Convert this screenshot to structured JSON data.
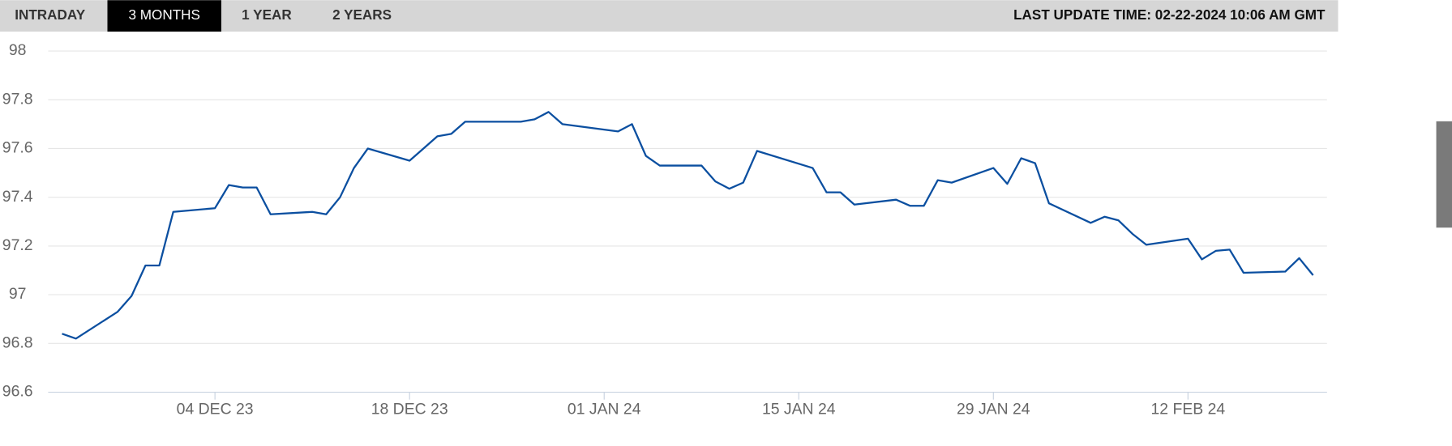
{
  "ui": {
    "tabs": [
      "INTRADAY",
      "3 MONTHS",
      "1 YEAR",
      "2 YEARS"
    ],
    "active_tab": 1,
    "last_update": "LAST UPDATE TIME: 02-22-2024 10:06 AM GMT"
  },
  "chart_data": {
    "type": "line",
    "color": "#0b4fa0",
    "grid": true,
    "x": [
      "2023-11-23",
      "2023-11-24",
      "2023-11-27",
      "2023-11-28",
      "2023-11-29",
      "2023-11-30",
      "2023-12-01",
      "2023-12-04",
      "2023-12-05",
      "2023-12-06",
      "2023-12-07",
      "2023-12-08",
      "2023-12-11",
      "2023-12-12",
      "2023-12-13",
      "2023-12-14",
      "2023-12-15",
      "2023-12-18",
      "2023-12-19",
      "2023-12-20",
      "2023-12-21",
      "2023-12-22",
      "2023-12-26",
      "2023-12-27",
      "2023-12-28",
      "2023-12-29",
      "2024-01-02",
      "2024-01-03",
      "2024-01-04",
      "2024-01-05",
      "2024-01-08",
      "2024-01-09",
      "2024-01-10",
      "2024-01-11",
      "2024-01-12",
      "2024-01-16",
      "2024-01-17",
      "2024-01-18",
      "2024-01-19",
      "2024-01-22",
      "2024-01-23",
      "2024-01-24",
      "2024-01-25",
      "2024-01-26",
      "2024-01-29",
      "2024-01-30",
      "2024-01-31",
      "2024-02-01",
      "2024-02-02",
      "2024-02-05",
      "2024-02-06",
      "2024-02-07",
      "2024-02-08",
      "2024-02-09",
      "2024-02-12",
      "2024-02-13",
      "2024-02-14",
      "2024-02-15",
      "2024-02-16",
      "2024-02-19",
      "2024-02-20",
      "2024-02-21"
    ],
    "values": [
      96.84,
      96.82,
      96.93,
      96.995,
      97.12,
      97.12,
      97.34,
      97.355,
      97.45,
      97.44,
      97.44,
      97.33,
      97.34,
      97.33,
      97.4,
      97.52,
      97.6,
      97.55,
      97.6,
      97.65,
      97.66,
      97.71,
      97.71,
      97.72,
      97.75,
      97.7,
      97.67,
      97.7,
      97.57,
      97.53,
      97.53,
      97.465,
      97.435,
      97.46,
      97.59,
      97.52,
      97.42,
      97.42,
      97.37,
      97.39,
      97.365,
      97.365,
      97.47,
      97.46,
      97.52,
      97.455,
      97.56,
      97.54,
      97.375,
      97.295,
      97.32,
      97.305,
      97.25,
      97.205,
      97.23,
      97.145,
      97.18,
      97.185,
      97.09,
      97.095,
      97.15,
      97.08
    ],
    "xlim": [
      "2023-11-22",
      "2024-02-22"
    ],
    "xticks": [
      {
        "value": "2023-12-04",
        "label": "04 DEC 23"
      },
      {
        "value": "2023-12-18",
        "label": "18 DEC 23"
      },
      {
        "value": "2024-01-01",
        "label": "01 JAN 24"
      },
      {
        "value": "2024-01-15",
        "label": "15 JAN 24"
      },
      {
        "value": "2024-01-29",
        "label": "29 JAN 24"
      },
      {
        "value": "2024-02-12",
        "label": "12 FEB 24"
      }
    ],
    "ylim": [
      96.6,
      98
    ],
    "yticks": [
      96.6,
      96.8,
      97,
      97.2,
      97.4,
      97.6,
      97.8,
      98
    ]
  }
}
